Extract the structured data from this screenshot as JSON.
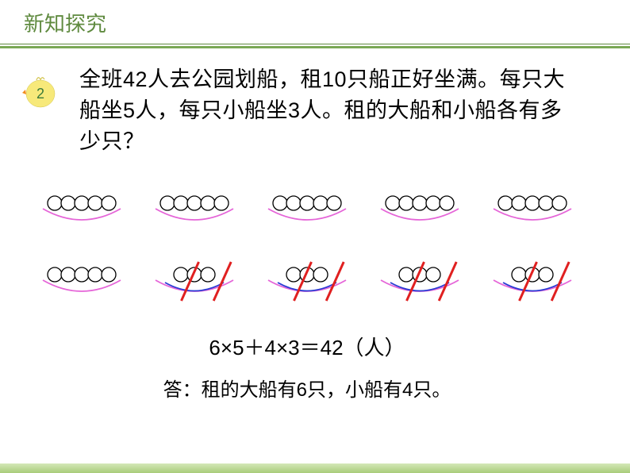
{
  "header": {
    "title": "新知探究",
    "title_color": "#5f8a3f",
    "title_fontsize": 26,
    "divider_color1": "#5f8a3f",
    "divider_color2": "#7aa855"
  },
  "badge": {
    "number": "2",
    "body_color": "#f7e97a",
    "beak_color": "#f28c1e",
    "text_color": "#3a7a3a"
  },
  "problem": {
    "text": "全班42人去公园划船，租10只船正好坐满。每只大船坐5人，每只小船坐3人。租的大船和小船各有多少只？",
    "fontsize": 27,
    "color": "#000000"
  },
  "boats": {
    "row1": [
      {
        "circles": 5,
        "hull_color": "#e565d8",
        "hull_color2": null,
        "strike": false
      },
      {
        "circles": 5,
        "hull_color": "#e565d8",
        "hull_color2": null,
        "strike": false
      },
      {
        "circles": 5,
        "hull_color": "#e565d8",
        "hull_color2": null,
        "strike": false
      },
      {
        "circles": 5,
        "hull_color": "#e565d8",
        "hull_color2": null,
        "strike": false
      },
      {
        "circles": 5,
        "hull_color": "#e565d8",
        "hull_color2": null,
        "strike": false
      }
    ],
    "row2": [
      {
        "circles": 5,
        "hull_color": "#e565d8",
        "hull_color2": null,
        "strike": false
      },
      {
        "circles": 3,
        "hull_color": "#e565d8",
        "hull_color2": "#2a3cd4",
        "strike": true
      },
      {
        "circles": 3,
        "hull_color": "#e565d8",
        "hull_color2": "#2a3cd4",
        "strike": true
      },
      {
        "circles": 3,
        "hull_color": "#e565d8",
        "hull_color2": "#2a3cd4",
        "strike": true
      },
      {
        "circles": 3,
        "hull_color": "#e565d8",
        "hull_color2": "#2a3cd4",
        "strike": true
      }
    ],
    "circle_stroke": "#000000",
    "circle_fill": "#ffffff",
    "strike_color": "#e02020",
    "boat_width": 110,
    "boat_height": 55
  },
  "equation": {
    "text": "6×5＋4×3＝42（人）",
    "fontsize": 26,
    "color": "#000000"
  },
  "answer": {
    "text": "答：租的大船有6只，小船有4只。",
    "fontsize": 24,
    "color": "#000000"
  },
  "footer": {
    "gradient_top": "#d4e8b8",
    "gradient_bottom": "#a8cc7a"
  }
}
